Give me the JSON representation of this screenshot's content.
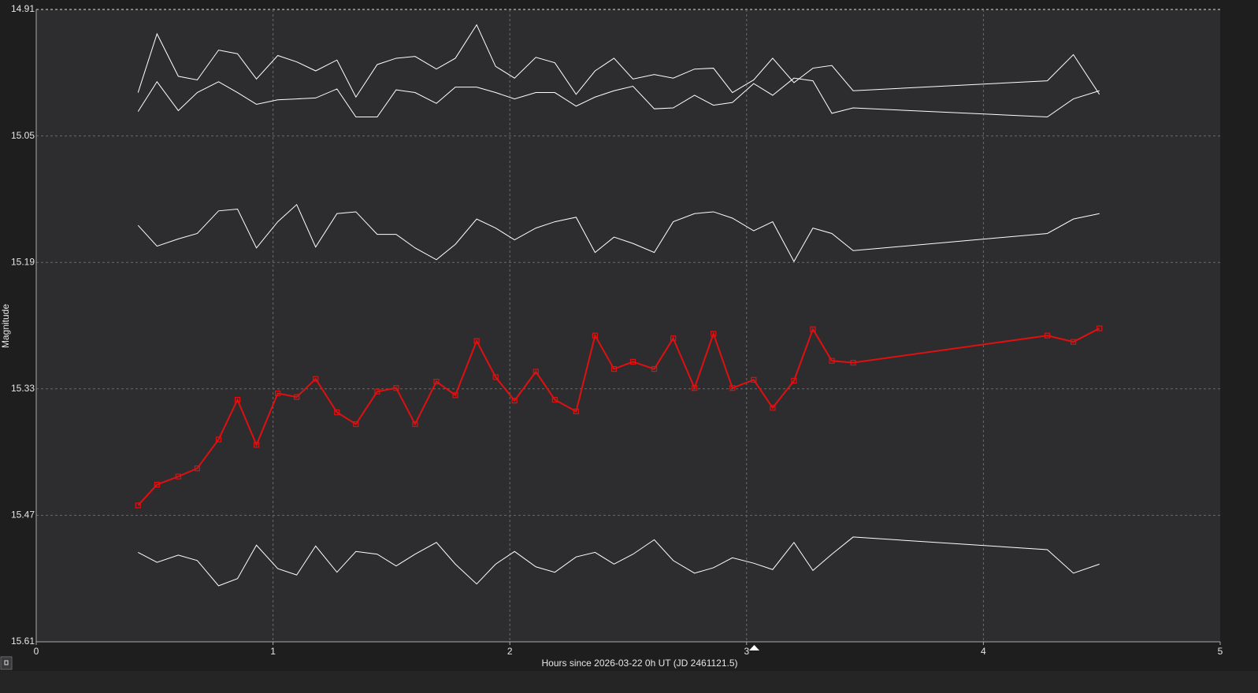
{
  "chart_data": {
    "type": "line",
    "x_label": "Hours since 2026-03-22 0h UT (JD 2461121.5)",
    "y_label": "Magnitude",
    "xlim": [
      0,
      5
    ],
    "xticks": [
      0,
      1,
      2,
      3,
      4,
      5
    ],
    "ylim": [
      14.91,
      15.61
    ],
    "yticks": [
      14.91,
      15.05,
      15.19,
      15.33,
      15.47,
      15.61
    ],
    "y_inverted": true,
    "grid": true,
    "x": [
      0.43,
      0.51,
      0.6,
      0.68,
      0.77,
      0.85,
      0.93,
      1.02,
      1.1,
      1.18,
      1.27,
      1.35,
      1.44,
      1.52,
      1.6,
      1.69,
      1.77,
      1.86,
      1.94,
      2.02,
      2.11,
      2.19,
      2.28,
      2.36,
      2.44,
      2.52,
      2.61,
      2.69,
      2.78,
      2.86,
      2.94,
      3.03,
      3.11,
      3.2,
      3.28,
      3.36,
      3.45,
      4.27,
      4.38,
      4.49
    ],
    "series": [
      {
        "color": "#ffffff",
        "marker": "none",
        "values": [
          15.002,
          14.937,
          14.984,
          14.988,
          14.955,
          14.959,
          14.987,
          14.961,
          14.968,
          14.978,
          14.966,
          15.007,
          14.971,
          14.964,
          14.962,
          14.976,
          14.964,
          14.927,
          14.973,
          14.986,
          14.963,
          14.969,
          15.004,
          14.978,
          14.964,
          14.987,
          14.982,
          14.986,
          14.976,
          14.975,
          15.002,
          14.988,
          14.964,
          14.991,
          14.975,
          14.972,
          15.0,
          14.989,
          14.96,
          15.004
        ]
      },
      {
        "color": "#ffffff",
        "marker": "none",
        "values": [
          15.023,
          14.99,
          15.022,
          15.002,
          14.99,
          15.002,
          15.015,
          15.01,
          15.009,
          15.008,
          14.998,
          15.029,
          15.029,
          14.999,
          15.002,
          15.014,
          14.996,
          14.996,
          15.002,
          15.009,
          15.002,
          15.002,
          15.017,
          15.007,
          15.0,
          14.995,
          15.02,
          15.019,
          15.005,
          15.016,
          15.013,
          14.992,
          15.005,
          14.986,
          14.989,
          15.025,
          15.019,
          15.029,
          15.009,
          15.0
        ]
      },
      {
        "color": "#ffffff",
        "marker": "none",
        "values": [
          15.149,
          15.172,
          15.164,
          15.158,
          15.133,
          15.131,
          15.174,
          15.145,
          15.126,
          15.173,
          15.136,
          15.134,
          15.159,
          15.159,
          15.174,
          15.187,
          15.17,
          15.142,
          15.152,
          15.165,
          15.152,
          15.145,
          15.14,
          15.179,
          15.162,
          15.169,
          15.179,
          15.145,
          15.136,
          15.134,
          15.141,
          15.155,
          15.145,
          15.189,
          15.152,
          15.158,
          15.177,
          15.158,
          15.142,
          15.136
        ]
      },
      {
        "color": "#e01010",
        "marker": "square",
        "values": [
          15.459,
          15.436,
          15.427,
          15.418,
          15.386,
          15.342,
          15.392,
          15.335,
          15.339,
          15.319,
          15.356,
          15.369,
          15.333,
          15.329,
          15.369,
          15.322,
          15.337,
          15.277,
          15.317,
          15.343,
          15.311,
          15.342,
          15.355,
          15.271,
          15.308,
          15.3,
          15.308,
          15.274,
          15.329,
          15.269,
          15.329,
          15.32,
          15.351,
          15.321,
          15.264,
          15.299,
          15.301,
          15.271,
          15.278,
          15.263
        ]
      },
      {
        "color": "#ffffff",
        "marker": "none",
        "values": [
          15.511,
          15.522,
          15.514,
          15.52,
          15.548,
          15.54,
          15.503,
          15.529,
          15.536,
          15.504,
          15.533,
          15.51,
          15.513,
          15.526,
          15.513,
          15.5,
          15.524,
          15.546,
          15.524,
          15.51,
          15.527,
          15.533,
          15.516,
          15.511,
          15.524,
          15.513,
          15.497,
          15.52,
          15.534,
          15.528,
          15.517,
          15.523,
          15.53,
          15.5,
          15.531,
          15.513,
          15.494,
          15.508,
          15.534,
          15.524
        ]
      }
    ]
  }
}
